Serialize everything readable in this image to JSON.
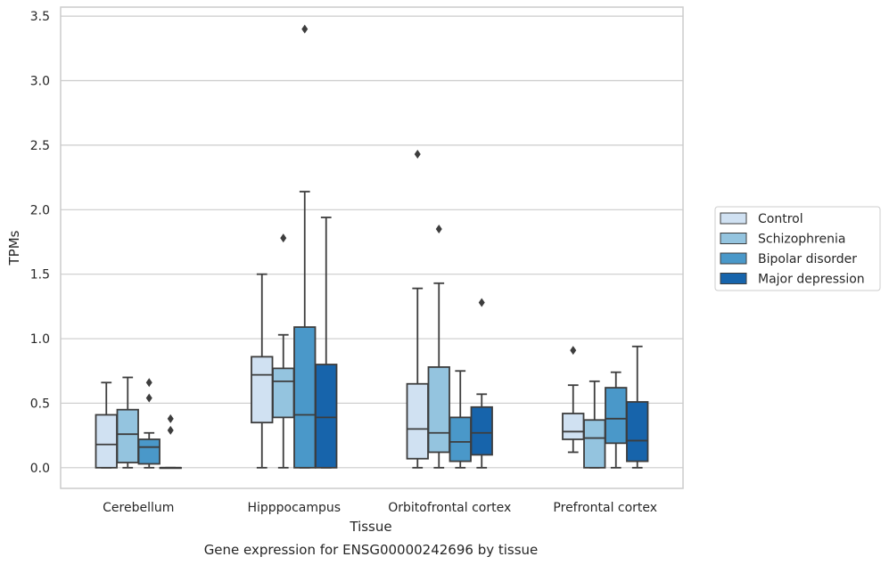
{
  "chart_data": {
    "type": "box",
    "xlabel": "Tissue",
    "ylabel": "TPMs",
    "caption": "Gene expression for ENSG00000242696 by tissue",
    "ylim": [
      -0.16,
      3.57
    ],
    "yticks": [
      "0.0",
      "0.5",
      "1.0",
      "1.5",
      "2.0",
      "2.5",
      "3.0",
      "3.5"
    ],
    "grid": true,
    "legend_position": "right",
    "categories": [
      "Cerebellum",
      "Hipppocampus",
      "Orbitofrontal cortex",
      "Prefrontal cortex"
    ],
    "series": [
      {
        "name": "Control",
        "color": "#d0e1f2",
        "boxes": [
          {
            "whislo": 0.0,
            "q1": 0.0,
            "med": 0.18,
            "q3": 0.41,
            "whishi": 0.66,
            "fliers": []
          },
          {
            "whislo": 0.0,
            "q1": 0.35,
            "med": 0.72,
            "q3": 0.86,
            "whishi": 1.5,
            "fliers": []
          },
          {
            "whislo": 0.0,
            "q1": 0.07,
            "med": 0.3,
            "q3": 0.65,
            "whishi": 1.39,
            "fliers": [
              2.43
            ]
          },
          {
            "whislo": 0.12,
            "q1": 0.22,
            "med": 0.28,
            "q3": 0.42,
            "whishi": 0.64,
            "fliers": [
              0.91
            ]
          }
        ]
      },
      {
        "name": "Schizophrenia",
        "color": "#94c4df",
        "boxes": [
          {
            "whislo": 0.0,
            "q1": 0.04,
            "med": 0.26,
            "q3": 0.45,
            "whishi": 0.7,
            "fliers": []
          },
          {
            "whislo": 0.0,
            "q1": 0.39,
            "med": 0.67,
            "q3": 0.77,
            "whishi": 1.03,
            "fliers": [
              1.78
            ]
          },
          {
            "whislo": 0.0,
            "q1": 0.12,
            "med": 0.27,
            "q3": 0.78,
            "whishi": 1.43,
            "fliers": [
              1.85
            ]
          },
          {
            "whislo": 0.0,
            "q1": 0.0,
            "med": 0.23,
            "q3": 0.37,
            "whishi": 0.67,
            "fliers": []
          }
        ]
      },
      {
        "name": "Bipolar disorder",
        "color": "#4a98c9",
        "boxes": [
          {
            "whislo": 0.0,
            "q1": 0.03,
            "med": 0.16,
            "q3": 0.22,
            "whishi": 0.27,
            "fliers": [
              0.54,
              0.66
            ]
          },
          {
            "whislo": 0.0,
            "q1": 0.0,
            "med": 0.41,
            "q3": 1.09,
            "whishi": 2.14,
            "fliers": [
              3.4
            ]
          },
          {
            "whislo": 0.0,
            "q1": 0.05,
            "med": 0.2,
            "q3": 0.39,
            "whishi": 0.75,
            "fliers": []
          },
          {
            "whislo": 0.0,
            "q1": 0.19,
            "med": 0.38,
            "q3": 0.62,
            "whishi": 0.74,
            "fliers": []
          }
        ]
      },
      {
        "name": "Major depression",
        "color": "#1764ab",
        "boxes": [
          {
            "whislo": 0.0,
            "q1": 0.0,
            "med": 0.0,
            "q3": 0.0,
            "whishi": 0.0,
            "fliers": [
              0.29,
              0.38
            ]
          },
          {
            "whislo": 0.0,
            "q1": 0.0,
            "med": 0.39,
            "q3": 0.8,
            "whishi": 1.94,
            "fliers": []
          },
          {
            "whislo": 0.0,
            "q1": 0.1,
            "med": 0.27,
            "q3": 0.47,
            "whishi": 0.57,
            "fliers": [
              1.28
            ]
          },
          {
            "whislo": 0.0,
            "q1": 0.05,
            "med": 0.21,
            "q3": 0.51,
            "whishi": 0.94,
            "fliers": []
          }
        ]
      }
    ]
  }
}
